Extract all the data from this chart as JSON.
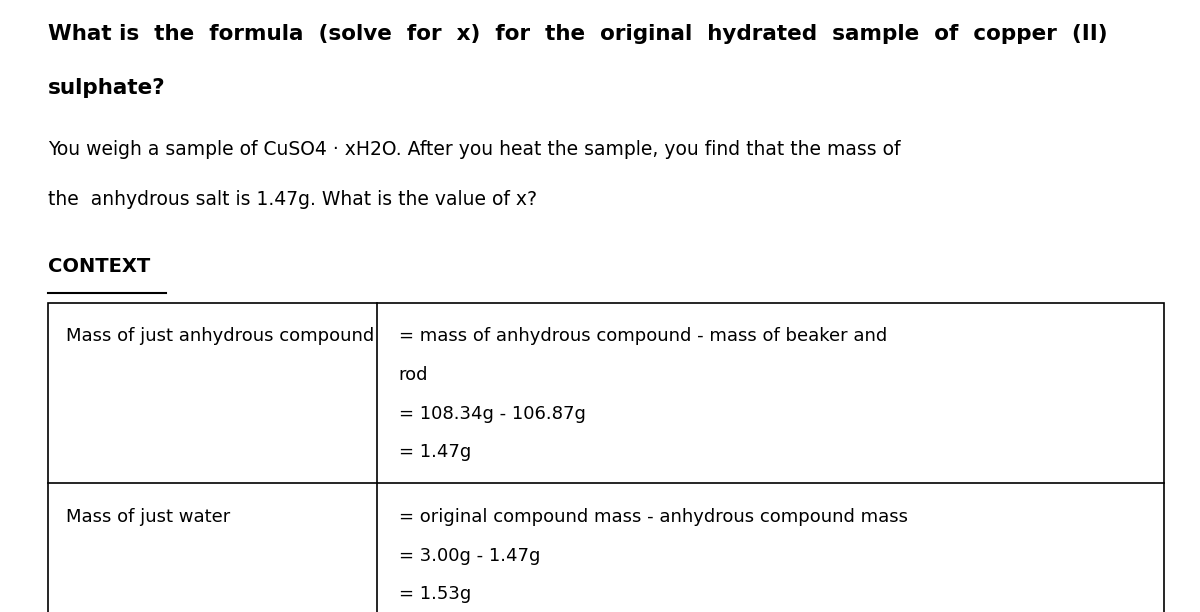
{
  "background_color": "#ffffff",
  "title_line1": "What is  the  formula  (solve  for  x)  for  the  original  hydrated  sample  of  copper  (II)",
  "title_line2": "sulphate?",
  "subtitle_line1": "You weigh a sample of CuSO4 · xH2O. After you heat the sample, you find that the mass of",
  "subtitle_line2": "the  anhydrous salt is 1.47g. What is the value of x?",
  "context_label": "CONTEXT",
  "table": {
    "col_split": 0.295,
    "rows": [
      {
        "left": "Mass of just anhydrous compound",
        "right_lines": [
          "= mass of anhydrous compound - mass of beaker and",
          "rod",
          "= 108.34g - 106.87g",
          "= 1.47g"
        ]
      },
      {
        "left": "Mass of just water",
        "right_lines": [
          "= original compound mass - anhydrous compound mass",
          "= 3.00g - 1.47g",
          "= 1.53g"
        ]
      }
    ]
  },
  "font_family": "DejaVu Sans",
  "title_fontsize": 15.5,
  "body_fontsize": 13.5,
  "context_fontsize": 14,
  "table_fontsize": 13
}
